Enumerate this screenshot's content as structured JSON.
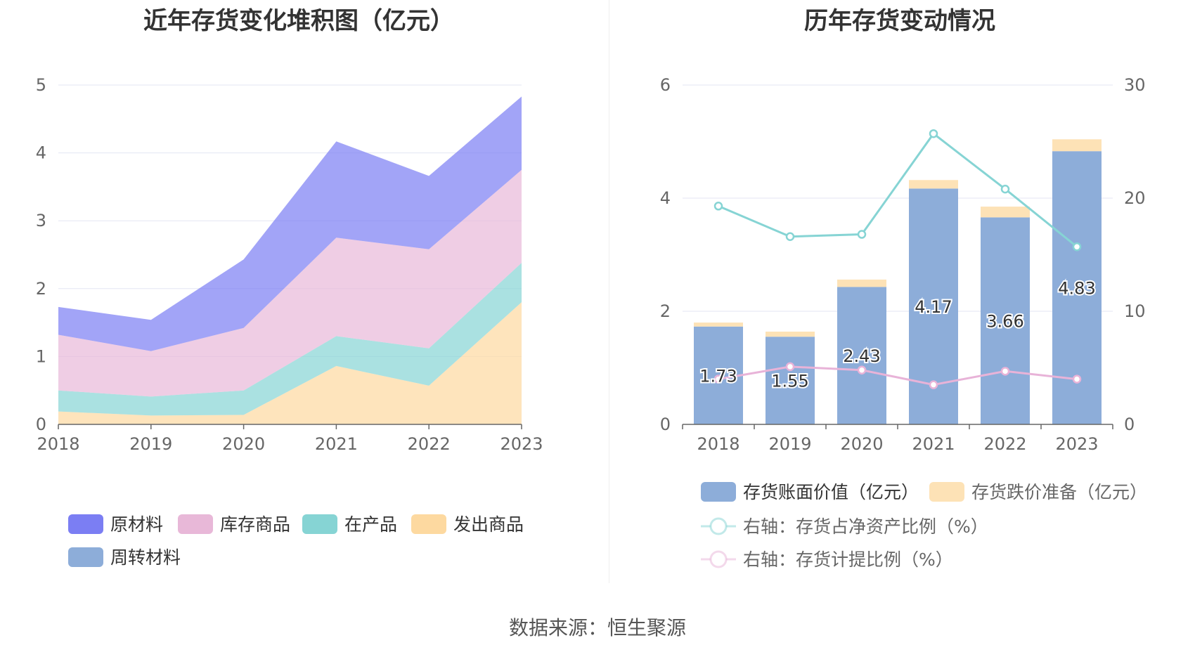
{
  "left_title": "近年存货变化堆积图（亿元）",
  "right_title": "历年存货变动情况",
  "source": "数据来源：恒生聚源",
  "colors": {
    "raw_materials": "#7b7ef3",
    "inventory_goods": "#e8b8d8",
    "wip": "#86d4d4",
    "shipped_goods": "#fdd9a0",
    "turnover_materials": "#8dadd9",
    "book_value": "#8dadd9",
    "impairment": "#fde2b6",
    "net_asset_ratio": "#86d4d4",
    "provision_ratio": "#e8b3d8",
    "grid": "#e3e6f3",
    "axis": "#666666"
  },
  "chart_data": [
    {
      "type": "area",
      "stacked": true,
      "title": "近年存货变化堆积图（亿元）",
      "categories": [
        "2018",
        "2019",
        "2020",
        "2021",
        "2022",
        "2023"
      ],
      "ylim": [
        0,
        5
      ],
      "yticks": [
        "0",
        "1",
        "2",
        "3",
        "4",
        "5"
      ],
      "grid": true,
      "legend_position": "bottom",
      "series": [
        {
          "name": "发出商品",
          "key": "shipped_goods",
          "values": [
            0.19,
            0.13,
            0.14,
            0.86,
            0.57,
            1.8
          ]
        },
        {
          "name": "在产品",
          "key": "wip",
          "values": [
            0.31,
            0.28,
            0.36,
            0.44,
            0.55,
            0.58
          ]
        },
        {
          "name": "库存商品",
          "key": "inventory_goods",
          "values": [
            0.82,
            0.67,
            0.92,
            1.45,
            1.46,
            1.37
          ]
        },
        {
          "name": "原材料",
          "key": "raw_materials",
          "values": [
            0.41,
            0.46,
            1.01,
            1.42,
            1.08,
            1.08
          ]
        },
        {
          "name": "周转材料",
          "key": "turnover_materials",
          "values": [
            0,
            0,
            0,
            0,
            0,
            0
          ]
        }
      ],
      "legend": [
        "原材料",
        "库存商品",
        "在产品",
        "发出商品",
        "周转材料"
      ]
    },
    {
      "type": "bar",
      "stacked": true,
      "title": "历年存货变动情况",
      "categories": [
        "2018",
        "2019",
        "2020",
        "2021",
        "2022",
        "2023"
      ],
      "ylim": [
        0,
        6
      ],
      "yticks": [
        "0",
        "2",
        "4",
        "6"
      ],
      "y2lim": [
        0,
        30
      ],
      "y2ticks": [
        "0",
        "10",
        "20",
        "30"
      ],
      "grid": true,
      "legend_position": "bottom",
      "series": [
        {
          "name": "存货账面价值（亿元）",
          "type": "bar",
          "axis": "left",
          "values": [
            1.73,
            1.55,
            2.43,
            4.17,
            3.66,
            4.83
          ],
          "labels": [
            "1.73",
            "1.55",
            "2.43",
            "4.17",
            "3.66",
            "4.83"
          ]
        },
        {
          "name": "存货跌价准备（亿元）",
          "type": "bar",
          "axis": "left",
          "values": [
            0.07,
            0.09,
            0.13,
            0.15,
            0.19,
            0.21
          ]
        },
        {
          "name": "右轴：存货占净资产比例（%）",
          "type": "line",
          "axis": "right",
          "values": [
            19.3,
            16.6,
            16.8,
            25.7,
            20.8,
            15.7
          ]
        },
        {
          "name": "右轴：存货计提比例（%）",
          "type": "line",
          "axis": "right",
          "values": [
            4.0,
            5.1,
            4.8,
            3.5,
            4.7,
            4.0
          ]
        }
      ]
    }
  ]
}
